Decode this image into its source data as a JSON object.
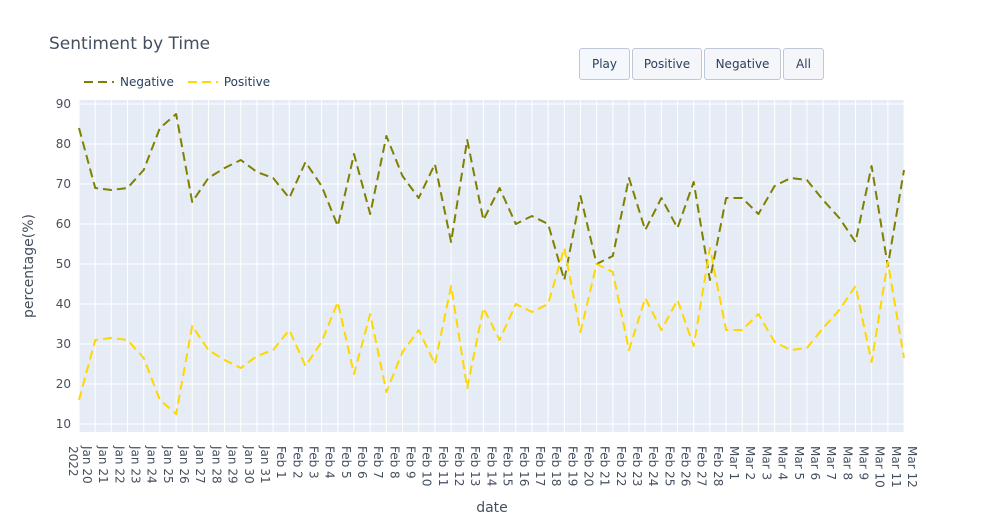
{
  "title": "Sentiment by Time",
  "buttons": [
    {
      "label": "Play"
    },
    {
      "label": "Positive"
    },
    {
      "label": "Negative"
    },
    {
      "label": "All"
    }
  ],
  "chart_data": {
    "type": "line",
    "title": "Sentiment by Time",
    "xlabel": "date",
    "ylabel": "percentage(%)",
    "ylim": [
      8,
      91
    ],
    "y_ticks": [
      10,
      20,
      30,
      40,
      50,
      60,
      70,
      80,
      90
    ],
    "x_tick_labels": [
      "Jan 20\n2022",
      "Jan 21",
      "Jan 22",
      "Jan 23",
      "Jan 24",
      "Jan 25",
      "Jan 26",
      "Jan 27",
      "Jan 28",
      "Jan 29",
      "Jan 30",
      "Jan 31",
      "Feb 1",
      "Feb 2",
      "Feb 3",
      "Feb 4",
      "Feb 5",
      "Feb 6",
      "Feb 7",
      "Feb 8",
      "Feb 9",
      "Feb 10",
      "Feb 11",
      "Feb 12",
      "Feb 13",
      "Feb 14",
      "Feb 15",
      "Feb 16",
      "Feb 17",
      "Feb 18",
      "Feb 19",
      "Feb 20",
      "Feb 21",
      "Feb 22",
      "Feb 23",
      "Feb 24",
      "Feb 25",
      "Feb 26",
      "Feb 27",
      "Feb 28",
      "Mar 1",
      "Mar 2",
      "Mar 3",
      "Mar 4",
      "Mar 5",
      "Mar 6",
      "Mar 7",
      "Mar 8",
      "Mar 9",
      "Mar 10",
      "Mar 11",
      "Mar 12"
    ],
    "grid": true,
    "legend_position": "top-left",
    "series": [
      {
        "name": "Negative",
        "color": "#808000",
        "dash": "dash",
        "x": [
          "2022-01-20",
          "2022-01-21",
          "2022-01-22",
          "2022-01-23",
          "2022-01-24",
          "2022-01-25",
          "2022-01-26",
          "2022-01-27",
          "2022-01-28",
          "2022-01-29",
          "2022-01-30",
          "2022-01-31",
          "2022-02-01",
          "2022-02-02",
          "2022-02-03",
          "2022-02-04",
          "2022-02-05",
          "2022-02-06",
          "2022-02-07",
          "2022-02-08",
          "2022-02-09",
          "2022-02-10",
          "2022-02-11",
          "2022-02-12",
          "2022-02-13",
          "2022-02-14",
          "2022-02-15",
          "2022-02-16",
          "2022-02-17",
          "2022-02-18",
          "2022-02-19",
          "2022-02-20",
          "2022-02-21",
          "2022-02-22",
          "2022-02-23",
          "2022-02-24",
          "2022-02-25",
          "2022-02-26",
          "2022-02-27",
          "2022-02-28",
          "2022-03-01",
          "2022-03-02",
          "2022-03-03",
          "2022-03-04",
          "2022-03-05",
          "2022-03-06",
          "2022-03-07",
          "2022-03-08",
          "2022-03-09",
          "2022-03-10",
          "2022-03-11",
          "2022-03-12"
        ],
        "values": [
          84,
          69,
          68.5,
          69,
          73.5,
          84,
          87.5,
          65.5,
          71.5,
          74,
          76,
          73,
          71.5,
          66.5,
          75.5,
          69.5,
          59.5,
          77.5,
          62.5,
          82,
          72,
          66.5,
          75,
          55.5,
          81,
          61,
          69,
          60,
          62,
          60,
          46,
          67,
          50,
          52,
          71.5,
          58.5,
          66.5,
          59,
          70.5,
          46,
          66.5,
          66.5,
          62.5,
          69.5,
          71.5,
          71,
          66,
          61.5,
          55.5,
          74.5,
          49.5,
          73.5
        ]
      },
      {
        "name": "Positive",
        "color": "#ffd700",
        "dash": "dash",
        "x": [
          "2022-01-20",
          "2022-01-21",
          "2022-01-22",
          "2022-01-23",
          "2022-01-24",
          "2022-01-25",
          "2022-01-26",
          "2022-01-27",
          "2022-01-28",
          "2022-01-29",
          "2022-01-30",
          "2022-01-31",
          "2022-02-01",
          "2022-02-02",
          "2022-02-03",
          "2022-02-04",
          "2022-02-05",
          "2022-02-06",
          "2022-02-07",
          "2022-02-08",
          "2022-02-09",
          "2022-02-10",
          "2022-02-11",
          "2022-02-12",
          "2022-02-13",
          "2022-02-14",
          "2022-02-15",
          "2022-02-16",
          "2022-02-17",
          "2022-02-18",
          "2022-02-19",
          "2022-02-20",
          "2022-02-21",
          "2022-02-22",
          "2022-02-23",
          "2022-02-24",
          "2022-02-25",
          "2022-02-26",
          "2022-02-27",
          "2022-02-28",
          "2022-03-01",
          "2022-03-02",
          "2022-03-03",
          "2022-03-04",
          "2022-03-05",
          "2022-03-06",
          "2022-03-07",
          "2022-03-08",
          "2022-03-09",
          "2022-03-10",
          "2022-03-11",
          "2022-03-12"
        ],
        "values": [
          16,
          31,
          31.5,
          31,
          26.5,
          16,
          12.5,
          34.5,
          28.5,
          26,
          24,
          27,
          28.5,
          33.5,
          24.5,
          30.5,
          40.5,
          22.5,
          37.5,
          18,
          28,
          33.5,
          25,
          44.5,
          19,
          39,
          31,
          40,
          38,
          40,
          54,
          33,
          50,
          48,
          28.5,
          41.5,
          33.5,
          41,
          29.5,
          54,
          33.5,
          33.5,
          37.5,
          30.5,
          28.5,
          29,
          34,
          38.5,
          44.5,
          25.5,
          50.5,
          26.5
        ]
      }
    ]
  }
}
